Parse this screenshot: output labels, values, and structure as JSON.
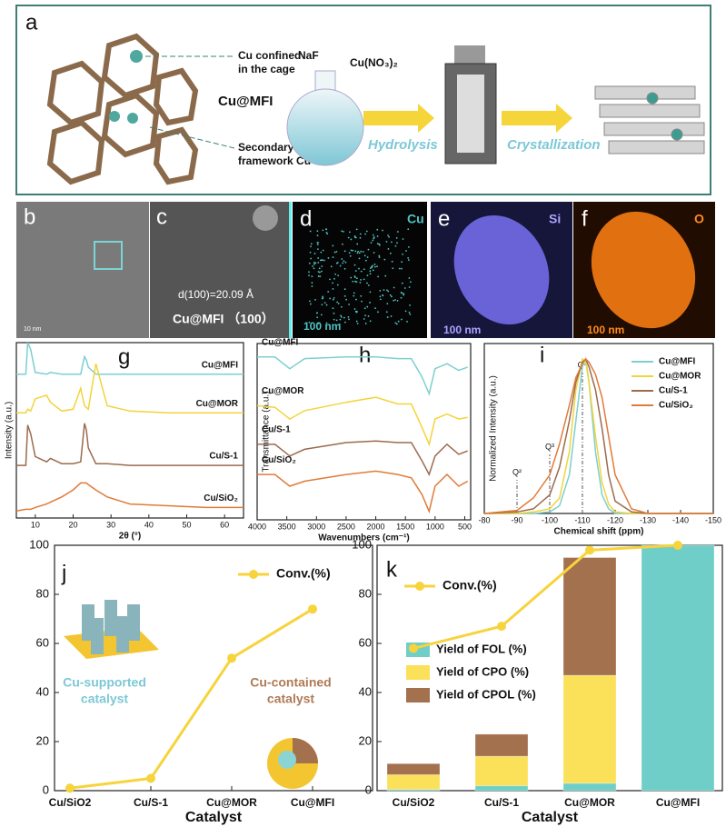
{
  "panel_a": {
    "label": "a",
    "cu_confined_1": "Cu confined",
    "cu_confined_2": "in  the cage",
    "material": "Cu@MFI",
    "secondary_1": "Secondary",
    "secondary_2": "framework Cu",
    "reagent_1": "NaF",
    "reagent_2": "Cu(NO₃)₂",
    "step_1": "Hydrolysis",
    "step_2": "Crystallization"
  },
  "panel_b": {
    "label": "b",
    "scale": "10 nm"
  },
  "panel_c": {
    "label": "c",
    "spacing": "d(100)=20.09 Å",
    "caption": "Cu@MFI （100）"
  },
  "panel_d": {
    "label": "d",
    "element": "Cu",
    "scale": "100 nm"
  },
  "panel_e": {
    "label": "e",
    "element": "Si",
    "scale": "100 nm"
  },
  "panel_f": {
    "label": "f",
    "element": "O",
    "scale": "100 nm"
  },
  "chart_data": [
    {
      "type": "line",
      "label": "g",
      "xlabel": "2θ (°)",
      "ylabel": "Intensity (a.u.)",
      "legend": "curve-end",
      "x": [
        5,
        7.5,
        8,
        8.8,
        10,
        13,
        14,
        17,
        20,
        22,
        23,
        23.5,
        24,
        26,
        29,
        35,
        45,
        55,
        65
      ],
      "xlim": [
        5,
        65
      ],
      "xticks": [
        10,
        20,
        30,
        40,
        50,
        60
      ],
      "ylim": [
        0,
        100
      ],
      "series": [
        {
          "name": "Cu@MFI",
          "color": "#7ecfcf",
          "values": [
            82,
            82,
            100,
            96,
            83,
            82,
            83,
            82,
            82,
            82,
            92,
            90,
            86,
            82,
            82,
            82,
            82,
            82,
            82
          ]
        },
        {
          "name": "Cu@MOR",
          "color": "#f2d43c",
          "values": [
            60,
            60,
            62,
            61,
            68,
            70,
            66,
            61,
            62,
            74,
            64,
            63,
            62,
            88,
            64,
            61,
            60,
            60,
            60
          ]
        },
        {
          "name": "Cu/S-1",
          "color": "#9b6b4e",
          "values": [
            30,
            30,
            53,
            48,
            35,
            32,
            34,
            31,
            31,
            32,
            54,
            50,
            40,
            31,
            31,
            30,
            30,
            30,
            30
          ]
        },
        {
          "name": "Cu/SiO₂",
          "color": "#e07b39",
          "values": [
            4,
            5,
            5,
            5,
            6,
            8,
            9,
            12,
            16,
            20,
            20,
            20,
            19,
            16,
            12,
            8,
            7,
            6,
            6
          ]
        }
      ]
    },
    {
      "type": "line",
      "label": "h",
      "xlabel": "Wavenumbers (cm⁻¹)",
      "ylabel": "Transmittance (a.u.)",
      "legend": "curve-start",
      "x": [
        4000,
        3700,
        3450,
        3200,
        2500,
        2000,
        1630,
        1400,
        1220,
        1100,
        1000,
        800,
        600,
        450
      ],
      "xlim": [
        4000,
        400
      ],
      "xticks": [
        4000,
        3500,
        3000,
        2500,
        2000,
        1500,
        1000,
        500
      ],
      "ylim": [
        -5,
        100
      ],
      "series": [
        {
          "name": "Cu@MFI",
          "color": "#7ecfcf",
          "values": [
            92,
            92,
            85,
            91,
            92,
            92,
            91,
            91,
            80,
            70,
            85,
            88,
            84,
            86
          ]
        },
        {
          "name": "Cu@MOR",
          "color": "#f2d43c",
          "values": [
            63,
            62,
            55,
            60,
            65,
            68,
            64,
            64,
            50,
            40,
            55,
            58,
            55,
            56
          ]
        },
        {
          "name": "Cu/S-1",
          "color": "#9b6b4e",
          "values": [
            40,
            40,
            33,
            37,
            41,
            42,
            41,
            41,
            30,
            22,
            33,
            40,
            34,
            36
          ]
        },
        {
          "name": "Cu/SiO₂",
          "color": "#e07b39",
          "values": [
            22,
            22,
            15,
            18,
            22,
            24,
            22,
            20,
            10,
            0,
            15,
            22,
            15,
            18
          ]
        }
      ]
    },
    {
      "type": "line",
      "label": "i",
      "xlabel": "Chemical shift (ppm)",
      "ylabel": "Normalized Intensity (a.u.)",
      "legend": "upper right",
      "x": [
        -80,
        -90,
        -95,
        -100,
        -103,
        -106,
        -108,
        -110,
        -111,
        -112,
        -114,
        -116,
        -118,
        -120,
        -125,
        -130,
        -150
      ],
      "xlim": [
        -80,
        -150
      ],
      "xticks": [
        -80,
        -90,
        -100,
        -110,
        -120,
        -130,
        -140,
        -150
      ],
      "ylim": [
        0,
        110
      ],
      "annotations": [
        {
          "text": "Q²",
          "x": -90
        },
        {
          "text": "Q³",
          "x": -100
        },
        {
          "text": "Q⁴",
          "x": -110
        }
      ],
      "series": [
        {
          "name": "Cu@MFI",
          "color": "#7ecfcf",
          "values": [
            0,
            0,
            0,
            1,
            5,
            25,
            60,
            95,
            100,
            85,
            40,
            12,
            3,
            0,
            0,
            0,
            0
          ]
        },
        {
          "name": "Cu@MOR",
          "color": "#f2d43c",
          "values": [
            0,
            0,
            1,
            3,
            10,
            40,
            80,
            100,
            98,
            85,
            50,
            20,
            6,
            1,
            0,
            0,
            0
          ]
        },
        {
          "name": "Cu/S-1",
          "color": "#9b6b4e",
          "values": [
            0,
            1,
            3,
            12,
            30,
            60,
            85,
            98,
            100,
            95,
            80,
            55,
            25,
            8,
            1,
            0,
            0
          ]
        },
        {
          "name": "Cu/SiO₂",
          "color": "#e07b39",
          "values": [
            0,
            2,
            10,
            25,
            45,
            70,
            88,
            97,
            100,
            98,
            90,
            75,
            50,
            25,
            3,
            0,
            0
          ]
        }
      ]
    },
    {
      "type": "line",
      "label": "j",
      "xlabel": "Catalyst",
      "legend": "upper right",
      "categories": [
        "Cu/SiO2",
        "Cu/S-1",
        "Cu@MOR",
        "Cu@MFI"
      ],
      "ylim": [
        0,
        100
      ],
      "yticks": [
        0,
        20,
        40,
        60,
        80,
        100
      ],
      "annotations": [
        "Cu-supported",
        "catalyst",
        "Cu-contained",
        "catalyst"
      ],
      "series": [
        {
          "name": "Conv.(%)",
          "color": "#f7d33c",
          "values": [
            1,
            5,
            54,
            74
          ]
        }
      ]
    },
    {
      "type": "bar",
      "label": "k",
      "xlabel": "Catalyst",
      "stacked": true,
      "categories": [
        "Cu/SiO2",
        "Cu/S-1",
        "Cu@MOR",
        "Cu@MFI"
      ],
      "ylim": [
        0,
        100
      ],
      "yticks": [
        0,
        20,
        40,
        60,
        80,
        100
      ],
      "series": [
        {
          "name": "Conv.(%)",
          "type": "line",
          "color": "#f7d33c",
          "values": [
            58,
            67,
            98,
            100
          ]
        },
        {
          "name": "Yield of FOL (%)",
          "color": "#6fcfc8",
          "values": [
            0.5,
            2,
            3,
            100
          ]
        },
        {
          "name": "Yield of CPO (%)",
          "color": "#fbe05a",
          "values": [
            6,
            12,
            44,
            0
          ]
        },
        {
          "name": "Yield of CPOL (%)",
          "color": "#a4714f",
          "values": [
            4.5,
            9,
            48,
            0
          ]
        }
      ]
    }
  ]
}
